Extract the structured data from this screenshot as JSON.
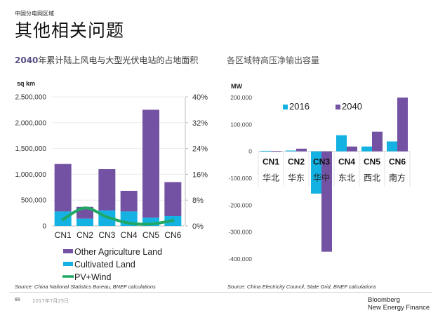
{
  "header": {
    "section_label": "中国分电网区域",
    "title": "其他相关问题"
  },
  "left_panel": {
    "title_highlight": "2040",
    "title_rest": "年累计陆上风电与大型光伏电站的占地面积",
    "source": "Source: China National Statistics Bureau, BNEF calculations"
  },
  "right_panel": {
    "title": "各区域特高压净输出容量",
    "source": "Source: China Electricity Council, State Grid, BNEF calculations"
  },
  "footer": {
    "page_number": "65",
    "date": "2017年7月25日",
    "brand_line1": "Bloomberg",
    "brand_line2": "New Energy Finance"
  },
  "colors": {
    "purple": "#7452a3",
    "cyan": "#13b2e3",
    "green": "#1fa865",
    "axis_gray": "#bdbdbd",
    "grid": "#ececec"
  },
  "chart_data": [
    {
      "type": "bar",
      "stacked": true,
      "title": "2040年累计陆上风电与大型光伏电站的占地面积",
      "ylabel": "sq km",
      "ylim": [
        0,
        2500000
      ],
      "yticks": [
        "0",
        "500,000",
        "1,000,000",
        "1,500,000",
        "2,000,000",
        "2,500,000"
      ],
      "y2lim": [
        0,
        40
      ],
      "y2ticks": [
        "0%",
        "8%",
        "16%",
        "24%",
        "32%",
        "40%"
      ],
      "categories": [
        "CN1",
        "CN2",
        "CN3",
        "CN4",
        "CN5",
        "CN6"
      ],
      "series": [
        {
          "name": "Cultivated Land",
          "color": "#13b2e3",
          "values": [
            280000,
            140000,
            300000,
            280000,
            160000,
            190000
          ]
        },
        {
          "name": "Other Agriculture Land",
          "color": "#7452a3",
          "values": [
            920000,
            230000,
            800000,
            400000,
            2090000,
            660000
          ]
        },
        {
          "name": "PV+Wind",
          "type": "line",
          "axis": "right",
          "unit": "%",
          "color": "#1fa865",
          "values": [
            2.0,
            5.6,
            2.8,
            0.9,
            0.6,
            1.7
          ]
        }
      ],
      "legend": [
        "Other Agriculture Land",
        "Cultivated Land",
        "PV+Wind"
      ],
      "legend_position": "bottom",
      "grid": true
    },
    {
      "type": "bar",
      "title": "各区域特高压净输出容量",
      "ylabel": "MW",
      "ylim": [
        -400000,
        200000
      ],
      "yticks": [
        "-400,000",
        "-300,000",
        "-200,000",
        "-100,000",
        "0",
        "100,000",
        "200,000"
      ],
      "categories": [
        "CN1",
        "CN2",
        "CN3",
        "CN4",
        "CN5",
        "CN6"
      ],
      "category_sublabels": [
        "华北",
        "华东",
        "华中",
        "东北",
        "西北",
        "南方"
      ],
      "series": [
        {
          "name": "2016",
          "color": "#13b2e3",
          "values": [
            2000,
            3000,
            -157000,
            60000,
            18000,
            37000
          ]
        },
        {
          "name": "2040",
          "color": "#7452a3",
          "values": [
            1000,
            10000,
            -373000,
            18000,
            73000,
            200000
          ]
        }
      ],
      "legend_position": "top",
      "grid": false
    }
  ]
}
